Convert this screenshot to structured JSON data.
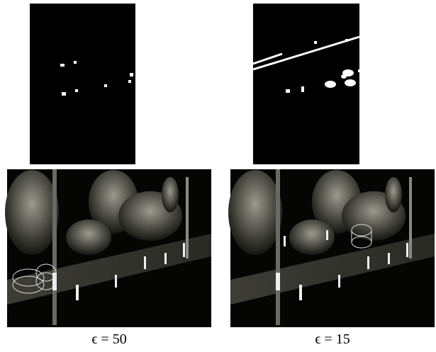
{
  "panels": [
    {
      "caption": "ϵ = 50"
    },
    {
      "caption": "ϵ = 15"
    }
  ]
}
